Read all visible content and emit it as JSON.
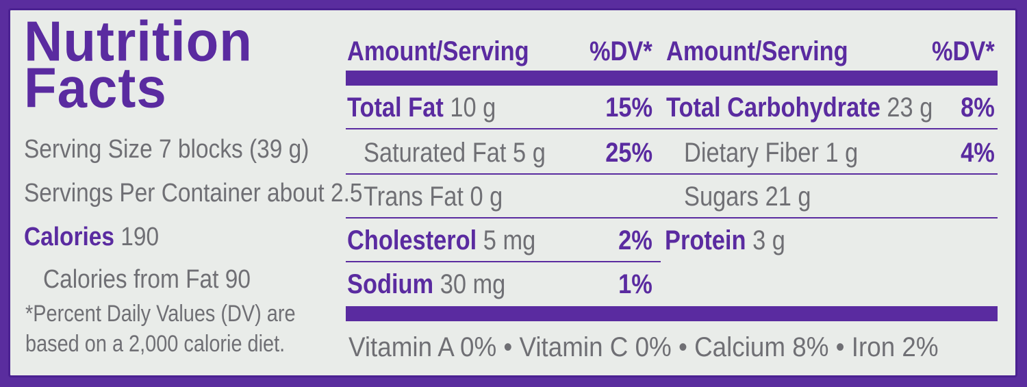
{
  "title_line1": "Nutrition",
  "title_line2": "Facts",
  "serving_size": "Serving Size 7 blocks (39 g)",
  "servings_per_container": "Servings Per Container about 2.5",
  "calories_label": "Calories",
  "calories_value": "190",
  "calories_from_fat": "Calories from Fat 90",
  "footnote_line1": "*Percent Daily Values (DV) are",
  "footnote_line2": "based on a 2,000 calorie diet.",
  "header": {
    "amount_left": "Amount/Serving",
    "dv_left": "%DV*",
    "amount_right": "Amount/Serving",
    "dv_right": "%DV*"
  },
  "left_rows": [
    {
      "label": "Total Fat",
      "amount": "10 g",
      "dv": "15%"
    },
    {
      "label": "Saturated Fat",
      "amount": "5 g",
      "dv": "25%"
    },
    {
      "label": "Trans Fat",
      "amount": "0 g",
      "dv": ""
    },
    {
      "label": "Cholesterol",
      "amount": "5 mg",
      "dv": "2%"
    },
    {
      "label": "Sodium",
      "amount": "30 mg",
      "dv": "1%"
    }
  ],
  "right_rows": [
    {
      "label": "Total Carbohydrate",
      "amount": "23 g",
      "dv": "8%"
    },
    {
      "label": "Dietary Fiber",
      "amount": "1 g",
      "dv": "4%"
    },
    {
      "label": "Sugars",
      "amount": "21 g",
      "dv": ""
    },
    {
      "label": "Protein",
      "amount": "3 g",
      "dv": ""
    }
  ],
  "vitamins": "Vitamin A 0% • Vitamin C 0% • Calcium 8% • Iron 2%",
  "colors": {
    "accent": "#5a2ba0",
    "text": "#6f6f74",
    "background": "#e9ece9"
  }
}
